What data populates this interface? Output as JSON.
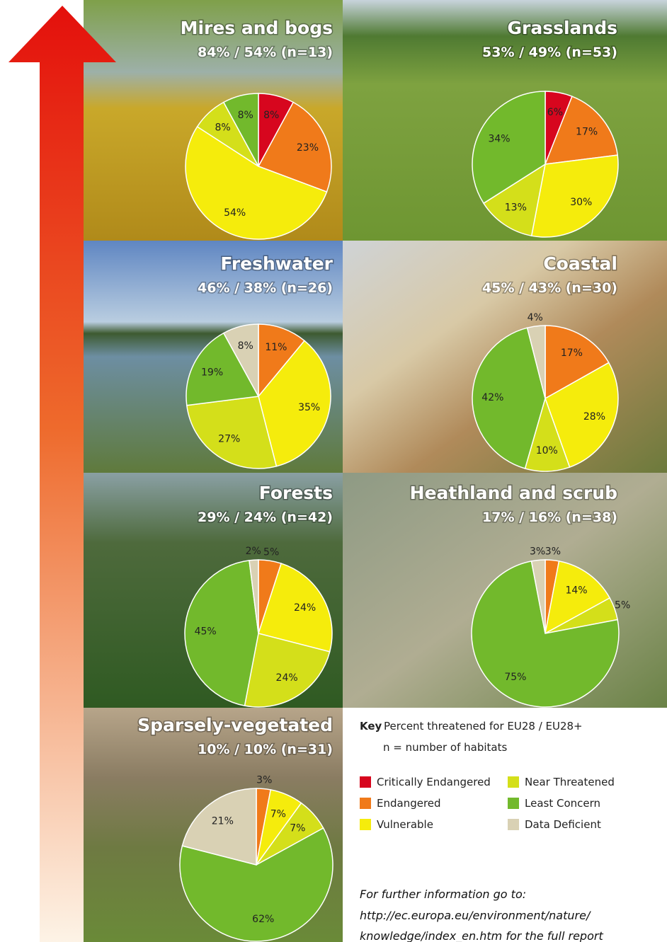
{
  "chart_data": [
    {
      "type": "pie",
      "title": "Mires and bogs",
      "subtitle": "84% / 54% (n=13)",
      "values": [
        8,
        23,
        54,
        8,
        8
      ],
      "value_labels": [
        "8%",
        "23%",
        "54%",
        "8%",
        "8%"
      ],
      "colors": [
        "#d7061e",
        "#f07a1a",
        "#f5ec0c",
        "#d4df1a",
        "#72b92c"
      ]
    },
    {
      "type": "pie",
      "title": "Grasslands",
      "subtitle": "53% / 49% (n=53)",
      "values": [
        6,
        17,
        30,
        13,
        34
      ],
      "value_labels": [
        "6%",
        "17%",
        "30%",
        "13%",
        "34%"
      ],
      "colors": [
        "#d7061e",
        "#f07a1a",
        "#f5ec0c",
        "#d4df1a",
        "#72b92c"
      ]
    },
    {
      "type": "pie",
      "title": "Freshwater",
      "subtitle": "46% / 38% (n=26)",
      "values": [
        11,
        35,
        27,
        19,
        8
      ],
      "value_labels": [
        "11%",
        "35%",
        "27%",
        "19%",
        "8%"
      ],
      "colors": [
        "#f07a1a",
        "#f5ec0c",
        "#d4df1a",
        "#72b92c",
        "#d9d1b4"
      ]
    },
    {
      "type": "pie",
      "title": "Coastal",
      "subtitle": "45% / 43% (n=30)",
      "values": [
        17,
        28,
        10,
        42,
        4
      ],
      "value_labels": [
        "17%",
        "28%",
        "10%",
        "42%",
        "4%"
      ],
      "colors": [
        "#f07a1a",
        "#f5ec0c",
        "#d4df1a",
        "#72b92c",
        "#d9d1b4"
      ]
    },
    {
      "type": "pie",
      "title": "Forests",
      "subtitle": "29% / 24% (n=42)",
      "values": [
        5,
        24,
        24,
        45,
        2
      ],
      "value_labels": [
        "5%",
        "24%",
        "24%",
        "45%",
        "2%"
      ],
      "colors": [
        "#f07a1a",
        "#f5ec0c",
        "#d4df1a",
        "#72b92c",
        "#d9d1b4"
      ]
    },
    {
      "type": "pie",
      "title": "Heathland and scrub",
      "subtitle": "17% / 16% (n=38)",
      "values": [
        3,
        14,
        5,
        75,
        3
      ],
      "value_labels": [
        "3%",
        "14%",
        "5%",
        "75%",
        "3%"
      ],
      "colors": [
        "#f07a1a",
        "#f5ec0c",
        "#d4df1a",
        "#72b92c",
        "#d9d1b4"
      ]
    },
    {
      "type": "pie",
      "title": "Sparsely-vegetated",
      "subtitle": "10% / 10% (n=31)",
      "values": [
        3,
        7,
        7,
        62,
        21
      ],
      "value_labels": [
        "3%",
        "7%",
        "7%",
        "62%",
        "21%"
      ],
      "colors": [
        "#f07a1a",
        "#f5ec0c",
        "#d4df1a",
        "#72b92c",
        "#d9d1b4"
      ]
    }
  ],
  "key": {
    "title": "Key",
    "text": "Percent threatened for EU28 / EU28+",
    "note": "n = number of habitats",
    "items": [
      {
        "name": "Critically Endangered",
        "color": "#d7061e"
      },
      {
        "name": "Endangered",
        "color": "#f07a1a"
      },
      {
        "name": "Vulnerable",
        "color": "#f5ec0c"
      },
      {
        "name": "Near Threatened",
        "color": "#d4df1a"
      },
      {
        "name": "Least Concern",
        "color": "#72b92c"
      },
      {
        "name": "Data Deficient",
        "color": "#d9d1b4"
      }
    ]
  },
  "footer": [
    "For further information go to:",
    "http://ec.europa.eu/environment/nature/",
    "knowledge/index_en.htm for the full report"
  ]
}
